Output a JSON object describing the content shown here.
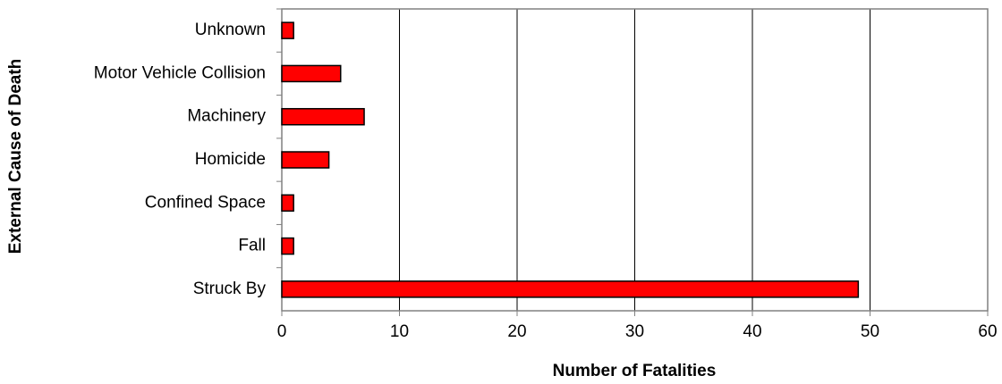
{
  "chart_data": {
    "type": "bar",
    "orientation": "horizontal",
    "xlabel": "Number of Fatalities",
    "ylabel": "External Cause of Death",
    "categories": [
      "Unknown",
      "Motor Vehicle Collision",
      "Machinery",
      "Homicide",
      "Confined Space",
      "Fall",
      "Struck By"
    ],
    "values": [
      1,
      5,
      7,
      4,
      1,
      1,
      49
    ],
    "color": "#ff0000",
    "xlim": [
      0,
      60
    ],
    "xticks": [
      0,
      10,
      20,
      30,
      40,
      50,
      60
    ],
    "grid": true
  }
}
